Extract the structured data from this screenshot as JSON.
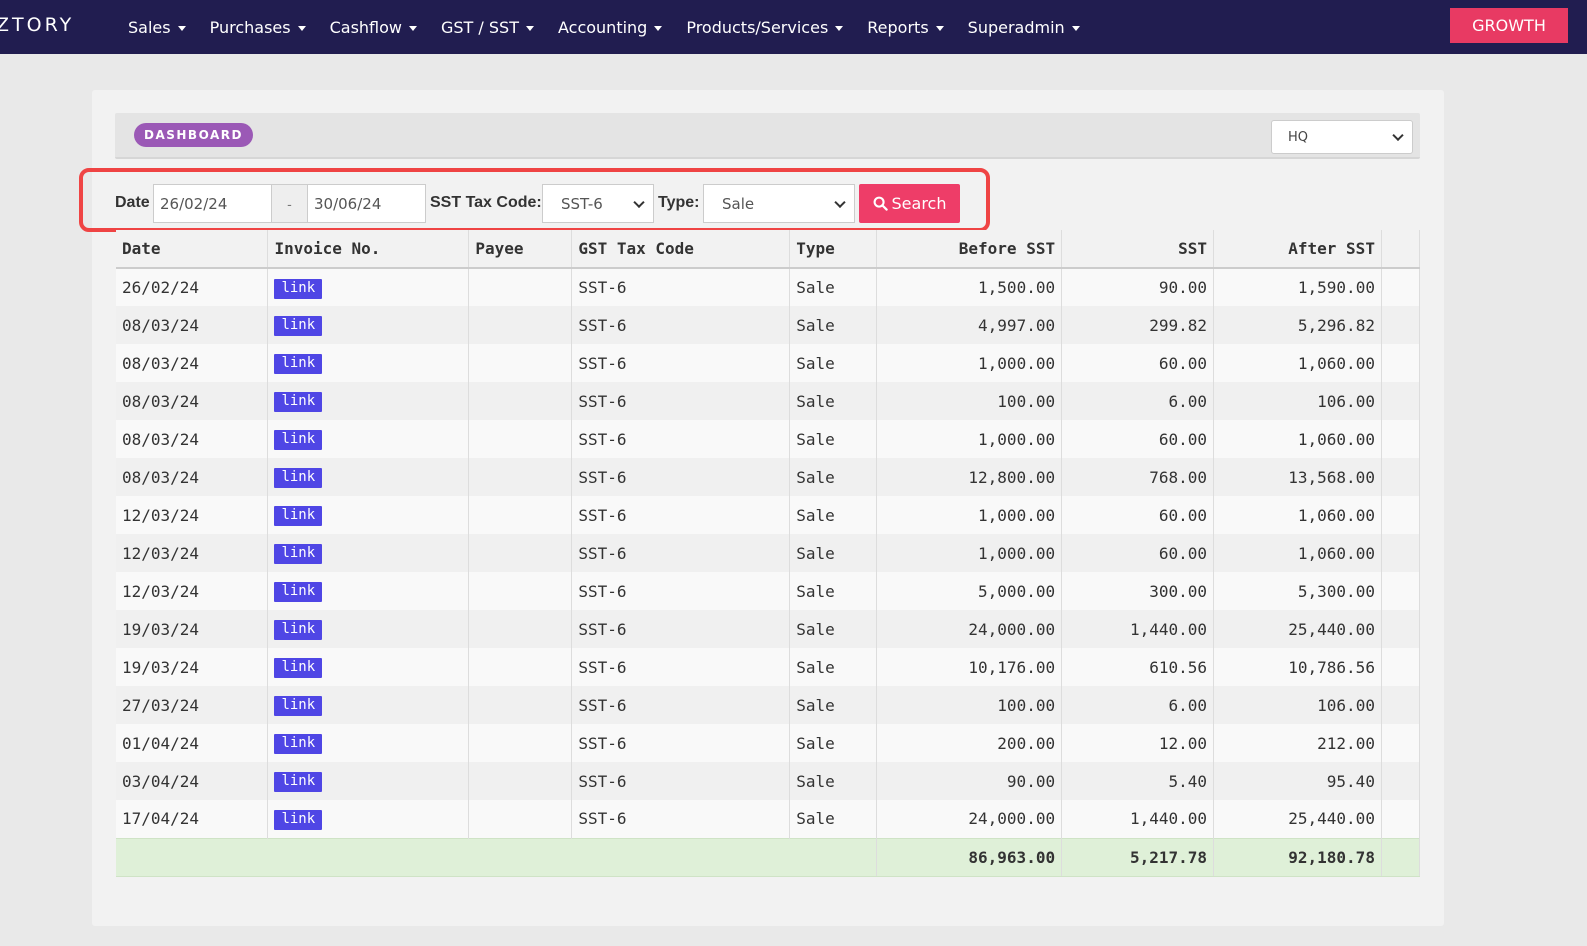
{
  "nav": {
    "logo": "ZTORY",
    "menu": [
      "Sales",
      "Purchases",
      "Cashflow",
      "GST / SST",
      "Accounting",
      "Products/Services",
      "Reports",
      "Superadmin"
    ],
    "cta": "GROWTH"
  },
  "header": {
    "badge": "DASHBOARD",
    "branch": "HQ"
  },
  "filters": {
    "date_label": "Date",
    "date_from": "26/02/24",
    "date_sep": "-",
    "date_to": "30/06/24",
    "tax_label": "SST Tax Code:",
    "tax_code": "SST-6",
    "type_label": "Type:",
    "type": "Sale",
    "search_label": "Search"
  },
  "table": {
    "columns": [
      "Date",
      "Invoice No.",
      "Payee",
      "GST Tax Code",
      "Type",
      "Before SST",
      "SST",
      "After SST"
    ],
    "rows": [
      {
        "date": "26/02/24",
        "invoice": "link",
        "payee": "",
        "code": "SST-6",
        "type": "Sale",
        "before": "1,500.00",
        "sst": "90.00",
        "after": "1,590.00"
      },
      {
        "date": "08/03/24",
        "invoice": "link",
        "payee": "",
        "code": "SST-6",
        "type": "Sale",
        "before": "4,997.00",
        "sst": "299.82",
        "after": "5,296.82"
      },
      {
        "date": "08/03/24",
        "invoice": "link",
        "payee": "",
        "code": "SST-6",
        "type": "Sale",
        "before": "1,000.00",
        "sst": "60.00",
        "after": "1,060.00"
      },
      {
        "date": "08/03/24",
        "invoice": "link",
        "payee": "",
        "code": "SST-6",
        "type": "Sale",
        "before": "100.00",
        "sst": "6.00",
        "after": "106.00"
      },
      {
        "date": "08/03/24",
        "invoice": "link",
        "payee": "",
        "code": "SST-6",
        "type": "Sale",
        "before": "1,000.00",
        "sst": "60.00",
        "after": "1,060.00"
      },
      {
        "date": "08/03/24",
        "invoice": "link",
        "payee": "",
        "code": "SST-6",
        "type": "Sale",
        "before": "12,800.00",
        "sst": "768.00",
        "after": "13,568.00"
      },
      {
        "date": "12/03/24",
        "invoice": "link",
        "payee": "",
        "code": "SST-6",
        "type": "Sale",
        "before": "1,000.00",
        "sst": "60.00",
        "after": "1,060.00"
      },
      {
        "date": "12/03/24",
        "invoice": "link",
        "payee": "",
        "code": "SST-6",
        "type": "Sale",
        "before": "1,000.00",
        "sst": "60.00",
        "after": "1,060.00"
      },
      {
        "date": "12/03/24",
        "invoice": "link",
        "payee": "",
        "code": "SST-6",
        "type": "Sale",
        "before": "5,000.00",
        "sst": "300.00",
        "after": "5,300.00"
      },
      {
        "date": "19/03/24",
        "invoice": "link",
        "payee": "",
        "code": "SST-6",
        "type": "Sale",
        "before": "24,000.00",
        "sst": "1,440.00",
        "after": "25,440.00"
      },
      {
        "date": "19/03/24",
        "invoice": "link",
        "payee": "",
        "code": "SST-6",
        "type": "Sale",
        "before": "10,176.00",
        "sst": "610.56",
        "after": "10,786.56"
      },
      {
        "date": "27/03/24",
        "invoice": "link",
        "payee": "",
        "code": "SST-6",
        "type": "Sale",
        "before": "100.00",
        "sst": "6.00",
        "after": "106.00"
      },
      {
        "date": "01/04/24",
        "invoice": "link",
        "payee": "",
        "code": "SST-6",
        "type": "Sale",
        "before": "200.00",
        "sst": "12.00",
        "after": "212.00"
      },
      {
        "date": "03/04/24",
        "invoice": "link",
        "payee": "",
        "code": "SST-6",
        "type": "Sale",
        "before": "90.00",
        "sst": "5.40",
        "after": "95.40"
      },
      {
        "date": "17/04/24",
        "invoice": "link",
        "payee": "",
        "code": "SST-6",
        "type": "Sale",
        "before": "24,000.00",
        "sst": "1,440.00",
        "after": "25,440.00"
      }
    ],
    "totals": {
      "before": "86,963.00",
      "sst": "5,217.78",
      "after": "92,180.78"
    }
  },
  "colors": {
    "nav_bg": "#211d50",
    "cta": "#e83a63",
    "badge": "#9b59b6",
    "link_badge": "#4f46e5",
    "search_btn": "#ee3d68",
    "highlight": "#ef4444",
    "total_row": "#dff0d8"
  }
}
